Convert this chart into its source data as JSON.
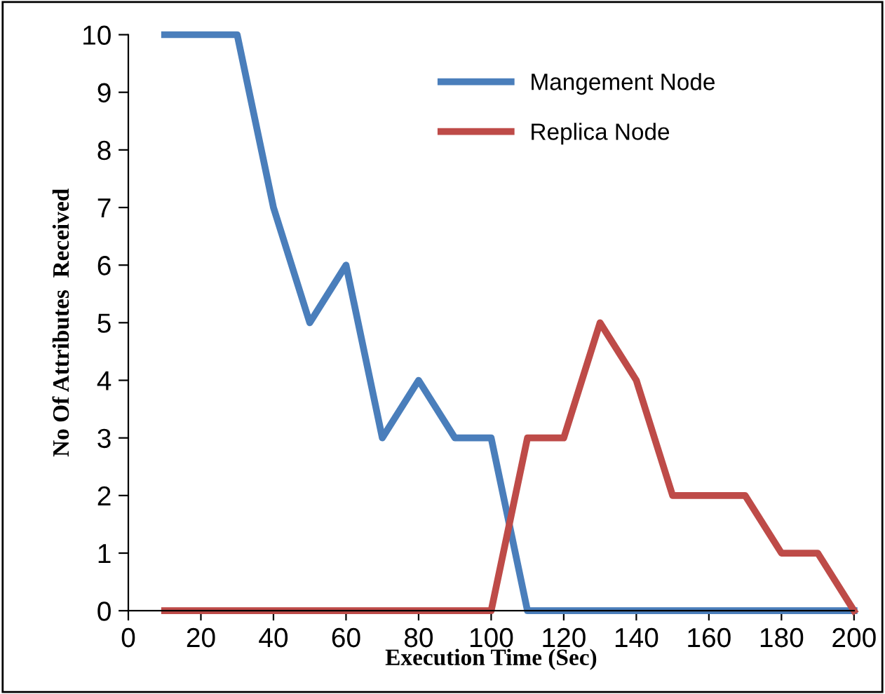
{
  "chart_data": {
    "type": "line",
    "xlabel": "Execution Time (Sec)",
    "ylabel": "No Of Attributes  Received",
    "x": [
      10,
      20,
      30,
      40,
      50,
      60,
      70,
      80,
      90,
      100,
      110,
      120,
      130,
      140,
      150,
      160,
      170,
      180,
      190,
      200
    ],
    "series": [
      {
        "name": "Mangement Node",
        "color": "#4a7ebb",
        "values": [
          10,
          10,
          10,
          7,
          5,
          6,
          3,
          4,
          3,
          3,
          0,
          0,
          0,
          0,
          0,
          0,
          0,
          0,
          0,
          0
        ]
      },
      {
        "name": "Replica Node",
        "color": "#be4b48",
        "values": [
          0,
          0,
          0,
          0,
          0,
          0,
          0,
          0,
          0,
          0,
          3,
          3,
          5,
          4,
          2,
          2,
          2,
          1,
          1,
          0
        ]
      }
    ],
    "xlim": [
      0,
      200
    ],
    "xticks": [
      0,
      20,
      40,
      60,
      80,
      100,
      120,
      140,
      160,
      180,
      200
    ],
    "ylim": [
      0,
      10
    ],
    "yticks": [
      0,
      1,
      2,
      3,
      4,
      5,
      6,
      7,
      8,
      9,
      10
    ],
    "grid": false,
    "legend": "top",
    "marker": "none",
    "line_style": "solid"
  }
}
